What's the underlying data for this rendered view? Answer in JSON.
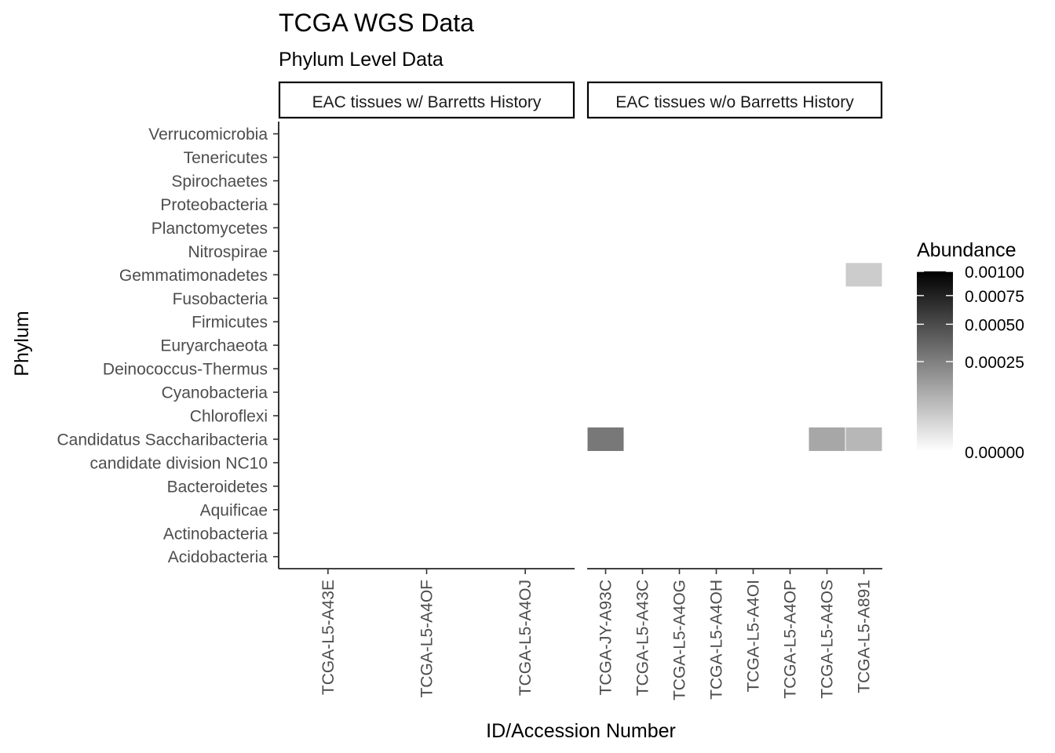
{
  "chart_data": {
    "type": "heatmap",
    "title": "TCGA WGS Data",
    "subtitle": "Phylum Level Data",
    "xlabel": "ID/Accession Number",
    "ylabel": "Phylum",
    "y_categories": [
      "Acidobacteria",
      "Actinobacteria",
      "Aquificae",
      "Bacteroidetes",
      "candidate division NC10",
      "Candidatus Saccharibacteria",
      "Chloroflexi",
      "Cyanobacteria",
      "Deinococcus-Thermus",
      "Euryarchaeota",
      "Firmicutes",
      "Fusobacteria",
      "Gemmatimonadetes",
      "Nitrospirae",
      "Planctomycetes",
      "Proteobacteria",
      "Spirochaetes",
      "Tenericutes",
      "Verrucomicrobia"
    ],
    "facets": [
      {
        "label": "EAC tissues w/ Barretts History",
        "x_categories": [
          "TCGA-L5-A43E",
          "TCGA-L5-A4OF",
          "TCGA-L5-A4OJ"
        ],
        "cells": []
      },
      {
        "label": "EAC tissues w/o Barretts History",
        "x_categories": [
          "TCGA-JY-A93C",
          "TCGA-L5-A43C",
          "TCGA-L5-A4OG",
          "TCGA-L5-A4OH",
          "TCGA-L5-A4OI",
          "TCGA-L5-A4OP",
          "TCGA-L5-A4OS",
          "TCGA-L5-A891"
        ],
        "cells": [
          {
            "x": "TCGA-JY-A93C",
            "y": "Candidatus Saccharibacteria",
            "value": 0.00028
          },
          {
            "x": "TCGA-L5-A4OS",
            "y": "Candidatus Saccharibacteria",
            "value": 0.00012
          },
          {
            "x": "TCGA-L5-A891",
            "y": "Candidatus Saccharibacteria",
            "value": 8e-05
          },
          {
            "x": "TCGA-L5-A891",
            "y": "Gemmatimonadetes",
            "value": 4e-05
          }
        ]
      }
    ],
    "legend": {
      "title": "Abundance",
      "placement": "right",
      "min": 0,
      "max": 0.001,
      "transform": "sqrt",
      "low_color": "#ffffff",
      "high_color": "#000000",
      "breaks": [
        0,
        0.00025,
        0.0005,
        0.00075,
        0.001
      ],
      "break_labels": [
        "0.00000",
        "0.00025",
        "0.00050",
        "0.00075",
        "0.00100"
      ]
    },
    "grid": false
  }
}
